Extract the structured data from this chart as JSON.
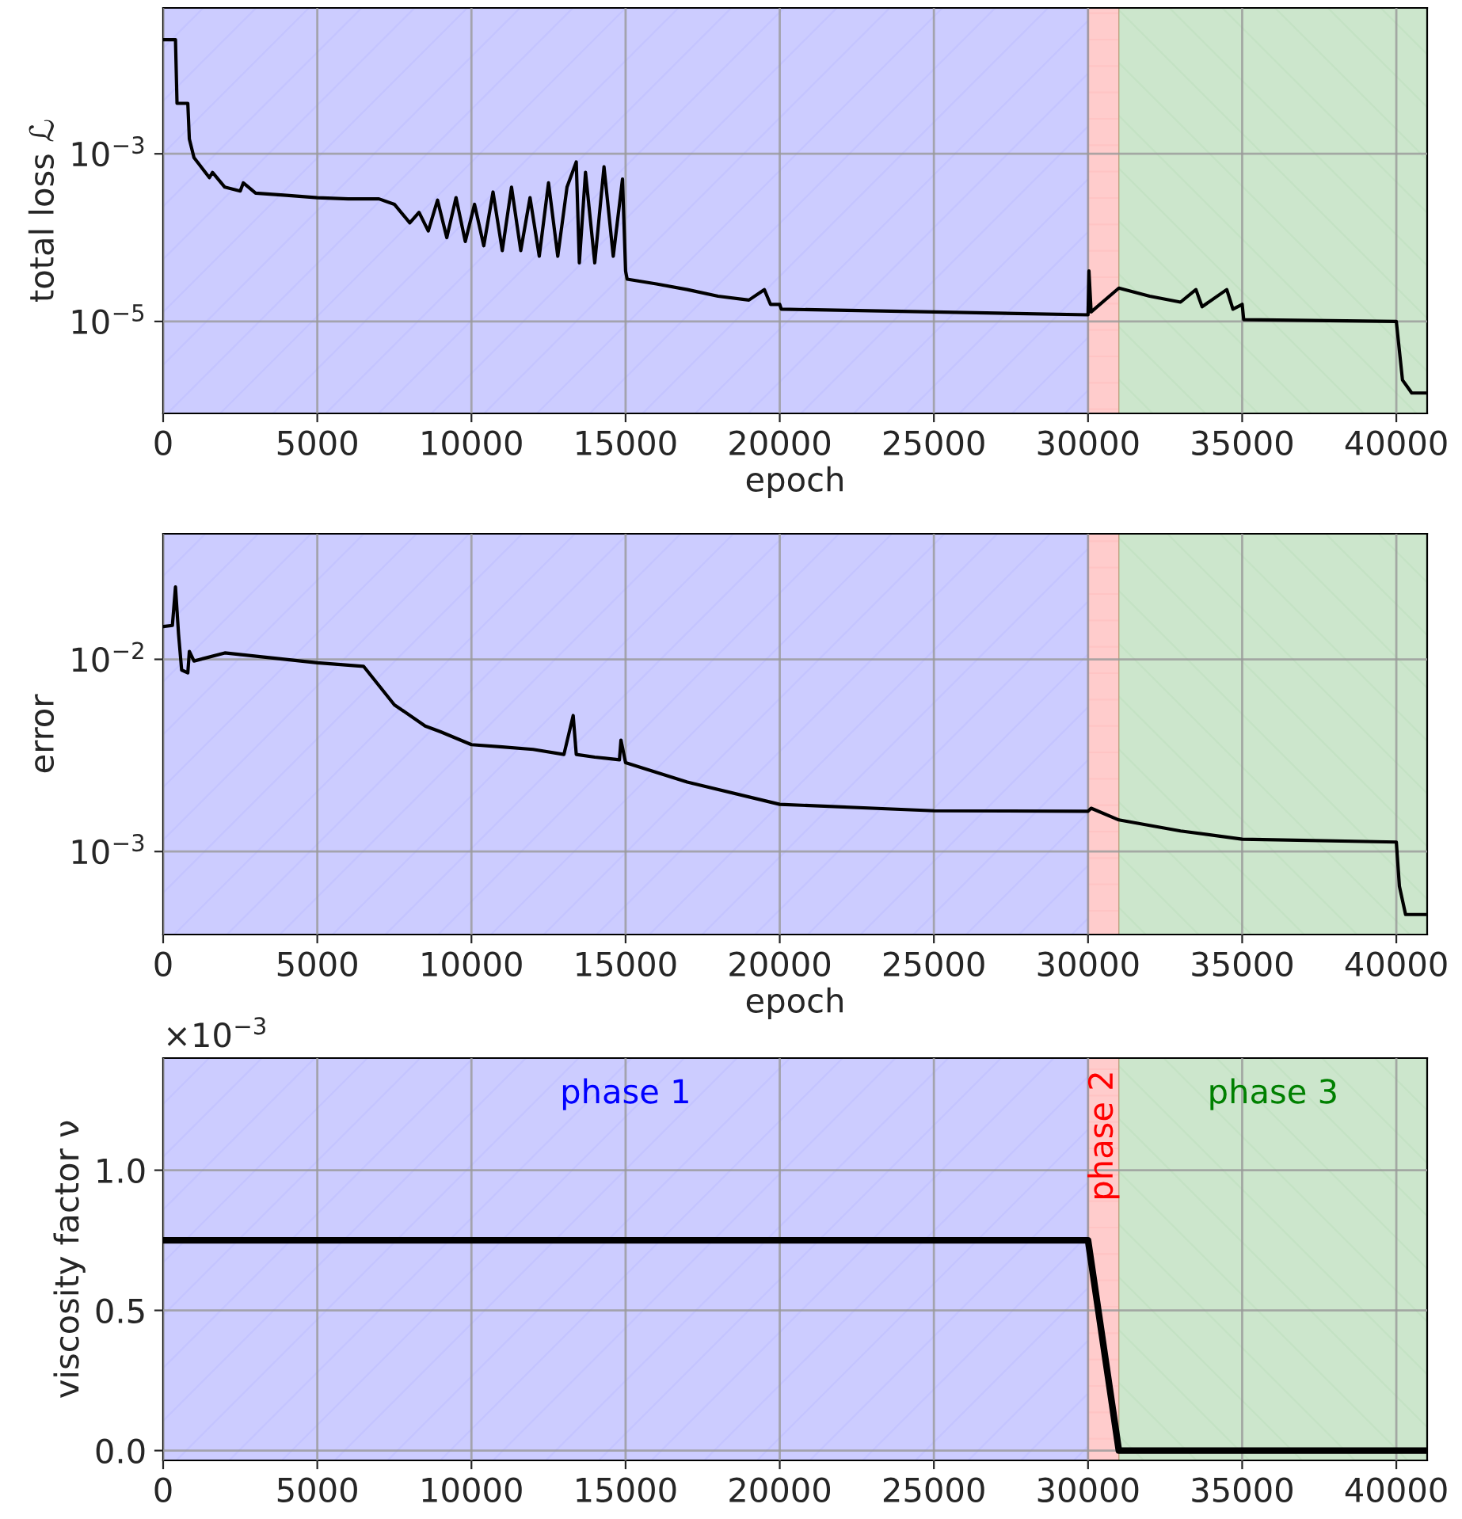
{
  "chart_data": [
    {
      "type": "line",
      "xlabel": "epoch",
      "ylabel": "total loss ℒ",
      "log": "y",
      "grid": true,
      "xlim": [
        0,
        41000
      ],
      "xticks": [
        0,
        5000,
        10000,
        15000,
        20000,
        25000,
        30000,
        35000,
        40000
      ],
      "ylim": [
        8e-07,
        0.055
      ],
      "yticks": [
        {
          "value": 0.001,
          "label": "10$^{−3}$"
        },
        {
          "value": 1e-05,
          "label": "10$^{−5}$"
        }
      ],
      "bands": [
        {
          "axis": "x",
          "from": 0,
          "to": 30000,
          "color": "#0000ff"
        },
        {
          "axis": "x",
          "from": 30000,
          "to": 31000,
          "color": "#ff0000"
        },
        {
          "axis": "x",
          "from": 31000,
          "to": 41000,
          "color": "#008000"
        }
      ],
      "series": [
        {
          "color": "#000000",
          "x": [
            0,
            400,
            450,
            800,
            850,
            1000,
            1500,
            1600,
            2000,
            2500,
            2600,
            3000,
            4000,
            5000,
            6000,
            7000,
            7500,
            8000,
            8300,
            8600,
            8900,
            9200,
            9500,
            9800,
            10100,
            10400,
            10700,
            11000,
            11300,
            11600,
            11900,
            12200,
            12500,
            12800,
            13100,
            13400,
            13500,
            13700,
            14000,
            14300,
            14600,
            14900,
            15000,
            15050,
            16000,
            17000,
            18000,
            19000,
            19500,
            19700,
            20000,
            20050,
            25000,
            30000,
            30030,
            30100,
            31000,
            32000,
            33000,
            33500,
            33700,
            34500,
            34700,
            35000,
            35050,
            40000,
            40200,
            40500,
            41000
          ],
          "values": [
            0.023,
            0.023,
            0.004,
            0.004,
            0.0015,
            0.0009,
            0.00052,
            0.0006,
            0.0004,
            0.00036,
            0.00045,
            0.00034,
            0.00032,
            0.0003,
            0.00029,
            0.00029,
            0.00025,
            0.00015,
            0.0002,
            0.00012,
            0.00028,
            0.0001,
            0.0003,
            9e-05,
            0.00025,
            8e-05,
            0.00035,
            7e-05,
            0.0004,
            7e-05,
            0.0003,
            6e-05,
            0.00045,
            6e-05,
            0.0004,
            0.0008,
            5e-05,
            0.0006,
            5e-05,
            0.0007,
            6e-05,
            0.0005,
            4e-05,
            3.2e-05,
            2.8e-05,
            2.4e-05,
            2e-05,
            1.8e-05,
            2.4e-05,
            1.6e-05,
            1.6e-05,
            1.4e-05,
            1.3e-05,
            1.2e-05,
            4e-05,
            1.3e-05,
            2.5e-05,
            2e-05,
            1.7e-05,
            2.4e-05,
            1.5e-05,
            2.4e-05,
            1.4e-05,
            1.6e-05,
            1.05e-05,
            1e-05,
            2e-06,
            1.4e-06,
            1.4e-06
          ]
        }
      ]
    },
    {
      "type": "line",
      "xlabel": "epoch",
      "ylabel": "error",
      "log": "y",
      "grid": true,
      "xlim": [
        0,
        41000
      ],
      "xticks": [
        0,
        5000,
        10000,
        15000,
        20000,
        25000,
        30000,
        35000,
        40000
      ],
      "ylim": [
        0.00037,
        0.045
      ],
      "yticks": [
        {
          "value": 0.01,
          "label": "10$^{−2}$"
        },
        {
          "value": 0.001,
          "label": "10$^{−3}$"
        }
      ],
      "bands": [
        {
          "axis": "x",
          "from": 0,
          "to": 30000,
          "color": "#0000ff"
        },
        {
          "axis": "x",
          "from": 30000,
          "to": 31000,
          "color": "#ff0000"
        },
        {
          "axis": "x",
          "from": 31000,
          "to": 41000,
          "color": "#008000"
        }
      ],
      "series": [
        {
          "color": "#000000",
          "x": [
            0,
            300,
            400,
            500,
            600,
            800,
            850,
            1000,
            2000,
            5000,
            6500,
            7500,
            8500,
            9000,
            10000,
            11000,
            12000,
            13000,
            13300,
            13400,
            14000,
            14800,
            14850,
            15000,
            17000,
            20000,
            25000,
            30000,
            30100,
            31000,
            33000,
            35000,
            40000,
            40100,
            40300,
            41000
          ],
          "values": [
            0.0148,
            0.015,
            0.0238,
            0.0135,
            0.0088,
            0.0085,
            0.011,
            0.0098,
            0.0108,
            0.0096,
            0.0092,
            0.0058,
            0.0045,
            0.0042,
            0.0036,
            0.0035,
            0.0034,
            0.0032,
            0.0051,
            0.0032,
            0.0031,
            0.003,
            0.0038,
            0.0029,
            0.0023,
            0.00176,
            0.00163,
            0.00162,
            0.00168,
            0.00146,
            0.00128,
            0.00116,
            0.00112,
            0.00066,
            0.00047,
            0.00047
          ]
        }
      ]
    },
    {
      "type": "line",
      "ylabel": "viscosity factor ν",
      "grid": true,
      "xlim": [
        0,
        41000
      ],
      "xticks": [
        0,
        5000,
        10000,
        15000,
        20000,
        25000,
        30000,
        35000,
        40000
      ],
      "ylim": [
        -0.035,
        1.4
      ],
      "yticks": [
        {
          "value": 0.0,
          "label": "0.0"
        },
        {
          "value": 0.5,
          "label": "0.5"
        },
        {
          "value": 1.0,
          "label": "1.0"
        }
      ],
      "annotations": [
        "×10$^{−3}$"
      ],
      "bands": [
        {
          "axis": "x",
          "from": 0,
          "to": 30000,
          "color": "#0000ff",
          "label": "phase 1"
        },
        {
          "axis": "x",
          "from": 30000,
          "to": 31000,
          "color": "#ff0000",
          "label": "phase 2"
        },
        {
          "axis": "x",
          "from": 31000,
          "to": 41000,
          "color": "#008000",
          "label": "phase 3"
        }
      ],
      "series": [
        {
          "color": "#000000",
          "x": [
            0,
            30000,
            31000,
            41000
          ],
          "values": [
            0.75,
            0.75,
            0.0,
            0.0
          ]
        }
      ]
    }
  ]
}
